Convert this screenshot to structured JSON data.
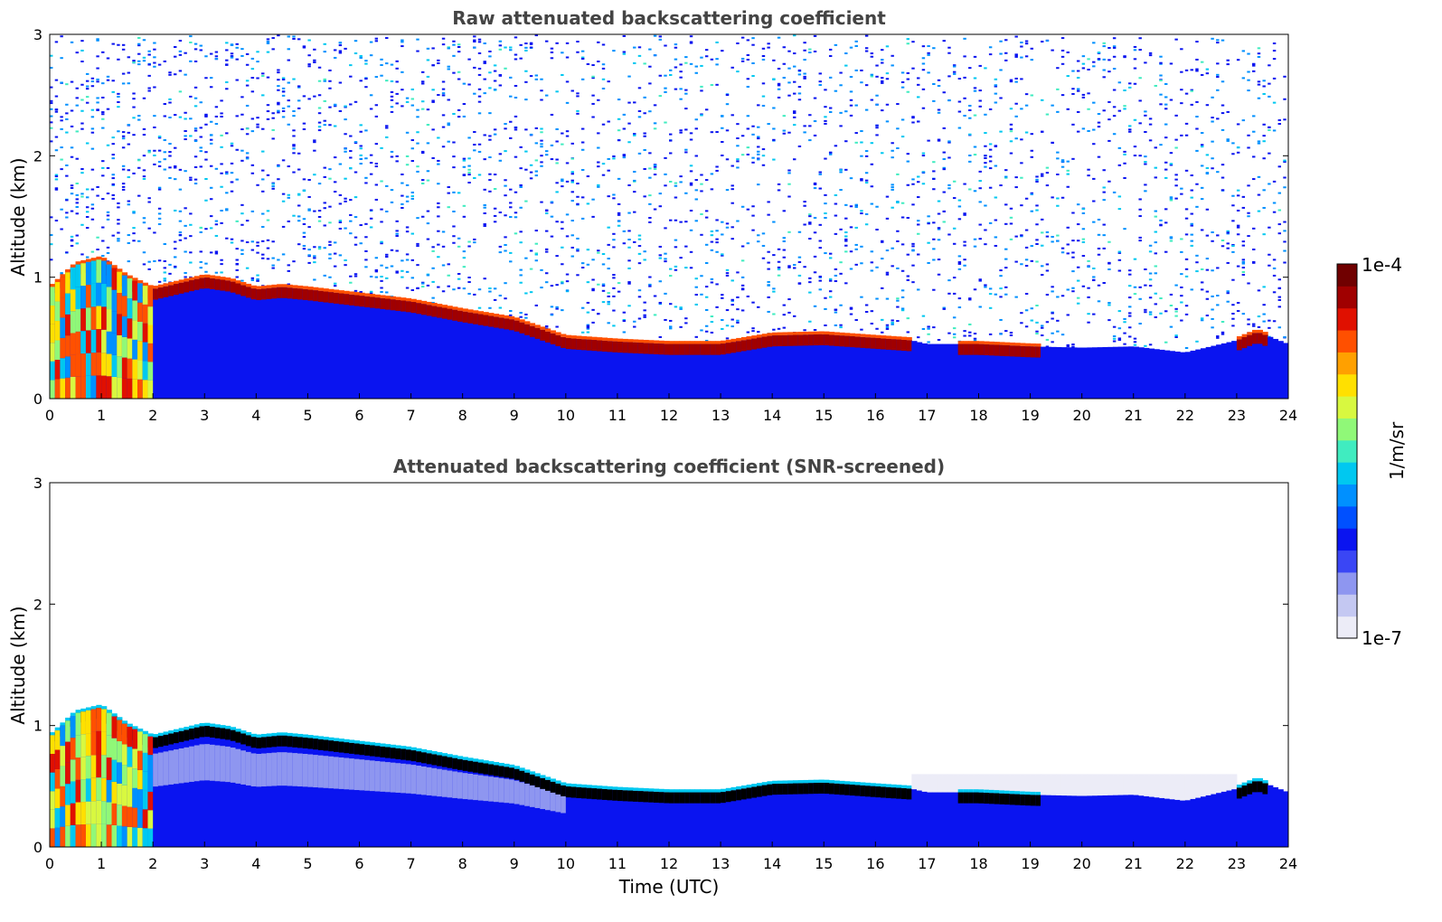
{
  "chart_data": [
    {
      "type": "heatmap",
      "title": "Raw attenuated backscattering coefficient",
      "xlabel": "",
      "ylabel": "Altitude (km)",
      "xlim": [
        0,
        24
      ],
      "ylim": [
        0,
        3
      ],
      "x_ticks": [
        "0",
        "1",
        "2",
        "3",
        "4",
        "5",
        "6",
        "7",
        "8",
        "9",
        "10",
        "11",
        "12",
        "13",
        "14",
        "15",
        "16",
        "17",
        "18",
        "19",
        "20",
        "21",
        "22",
        "23",
        "24"
      ],
      "y_ticks": [
        "0",
        "1",
        "2",
        "3"
      ],
      "screened": false,
      "layer_top_km": [
        {
          "t": 0,
          "h": 0.9
        },
        {
          "t": 0.5,
          "h": 1.1
        },
        {
          "t": 1,
          "h": 1.15
        },
        {
          "t": 1.5,
          "h": 1.0
        },
        {
          "t": 2,
          "h": 0.9
        },
        {
          "t": 2.5,
          "h": 0.95
        },
        {
          "t": 3,
          "h": 1.0
        },
        {
          "t": 3.5,
          "h": 0.97
        },
        {
          "t": 4,
          "h": 0.9
        },
        {
          "t": 4.5,
          "h": 0.92
        },
        {
          "t": 5,
          "h": 0.9
        },
        {
          "t": 6,
          "h": 0.85
        },
        {
          "t": 7,
          "h": 0.8
        },
        {
          "t": 8,
          "h": 0.72
        },
        {
          "t": 9,
          "h": 0.65
        },
        {
          "t": 10,
          "h": 0.5
        },
        {
          "t": 11,
          "h": 0.47
        },
        {
          "t": 12,
          "h": 0.45
        },
        {
          "t": 13,
          "h": 0.45
        },
        {
          "t": 14,
          "h": 0.52
        },
        {
          "t": 15,
          "h": 0.53
        },
        {
          "t": 16,
          "h": 0.5
        },
        {
          "t": 16.7,
          "h": 0.48
        },
        {
          "t": 17,
          "h": 0.45
        },
        {
          "t": 18,
          "h": 0.45
        },
        {
          "t": 19,
          "h": 0.43
        },
        {
          "t": 20,
          "h": 0.42
        },
        {
          "t": 21,
          "h": 0.43
        },
        {
          "t": 22,
          "h": 0.38
        },
        {
          "t": 23,
          "h": 0.48
        },
        {
          "t": 23.4,
          "h": 0.55
        },
        {
          "t": 24,
          "h": 0.45
        }
      ]
    },
    {
      "type": "heatmap",
      "title": "Attenuated backscattering coefficient (SNR-screened)",
      "xlabel": "Time (UTC)",
      "ylabel": "Altitude (km)",
      "xlim": [
        0,
        24
      ],
      "ylim": [
        0,
        3
      ],
      "x_ticks": [
        "0",
        "1",
        "2",
        "3",
        "4",
        "5",
        "6",
        "7",
        "8",
        "9",
        "10",
        "11",
        "12",
        "13",
        "14",
        "15",
        "16",
        "17",
        "18",
        "19",
        "20",
        "21",
        "22",
        "23",
        "24"
      ],
      "y_ticks": [
        "0",
        "1",
        "2",
        "3"
      ],
      "screened": true,
      "layer_top_km": [
        {
          "t": 0,
          "h": 0.9
        },
        {
          "t": 0.5,
          "h": 1.1
        },
        {
          "t": 1,
          "h": 1.15
        },
        {
          "t": 1.5,
          "h": 1.0
        },
        {
          "t": 2,
          "h": 0.9
        },
        {
          "t": 2.5,
          "h": 0.95
        },
        {
          "t": 3,
          "h": 1.0
        },
        {
          "t": 3.5,
          "h": 0.97
        },
        {
          "t": 4,
          "h": 0.9
        },
        {
          "t": 4.5,
          "h": 0.92
        },
        {
          "t": 5,
          "h": 0.9
        },
        {
          "t": 6,
          "h": 0.85
        },
        {
          "t": 7,
          "h": 0.8
        },
        {
          "t": 8,
          "h": 0.72
        },
        {
          "t": 9,
          "h": 0.65
        },
        {
          "t": 10,
          "h": 0.5
        },
        {
          "t": 11,
          "h": 0.47
        },
        {
          "t": 12,
          "h": 0.45
        },
        {
          "t": 13,
          "h": 0.45
        },
        {
          "t": 14,
          "h": 0.52
        },
        {
          "t": 15,
          "h": 0.53
        },
        {
          "t": 16,
          "h": 0.5
        },
        {
          "t": 16.7,
          "h": 0.48
        },
        {
          "t": 17,
          "h": 0.45
        },
        {
          "t": 18,
          "h": 0.45
        },
        {
          "t": 19,
          "h": 0.43
        },
        {
          "t": 20,
          "h": 0.42
        },
        {
          "t": 21,
          "h": 0.43
        },
        {
          "t": 22,
          "h": 0.38
        },
        {
          "t": 23,
          "h": 0.48
        },
        {
          "t": 23.4,
          "h": 0.55
        },
        {
          "t": 24,
          "h": 0.45
        }
      ]
    }
  ],
  "colorbar": {
    "label": "1/m/sr",
    "max_label": "1e-4",
    "min_label": "1e-7",
    "colormap": [
      "#ececf7",
      "#c4c8f2",
      "#8e96f0",
      "#3a46f5",
      "#0a14f0",
      "#0050ff",
      "#0090ff",
      "#00c8f0",
      "#40ecc0",
      "#90f878",
      "#d8f840",
      "#ffe000",
      "#ffa000",
      "#ff5000",
      "#e01000",
      "#a00000",
      "#700000"
    ]
  }
}
